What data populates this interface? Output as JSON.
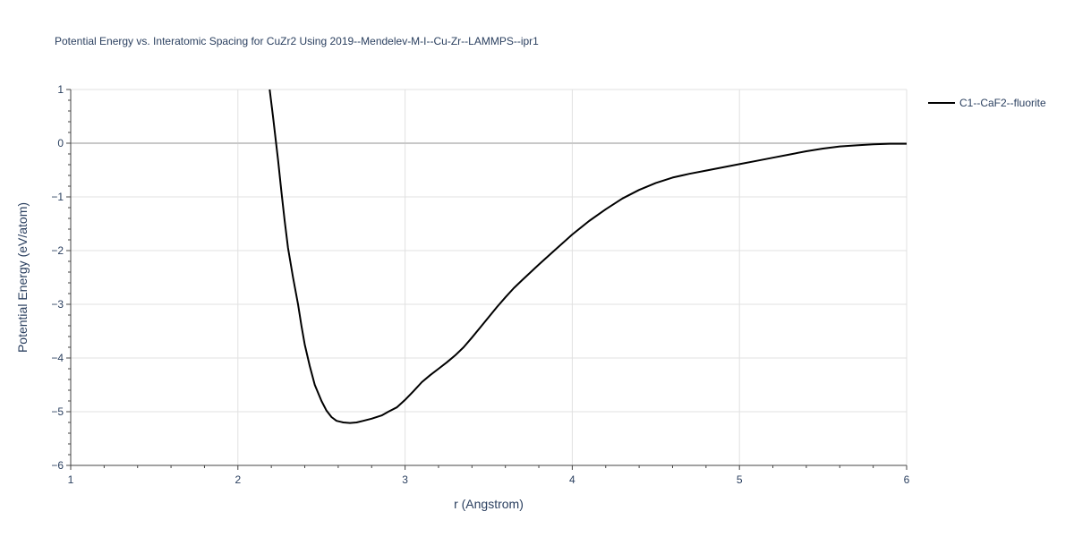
{
  "chart_data": {
    "type": "line",
    "title": "Potential Energy vs. Interatomic Spacing for CuZr2 Using 2019--Mendelev-M-I--Cu-Zr--LAMMPS--ipr1",
    "xlabel": "r (Angstrom)",
    "ylabel": "Potential Energy (eV/atom)",
    "xlim": [
      1,
      6
    ],
    "ylim": [
      -6,
      1
    ],
    "xticks": [
      1,
      2,
      3,
      4,
      5,
      6
    ],
    "yticks": [
      1,
      0,
      -1,
      -2,
      -3,
      -4,
      -5,
      -6
    ],
    "xtick_labels": [
      "1",
      "2",
      "3",
      "4",
      "5",
      "6"
    ],
    "ytick_labels": [
      "1",
      "0",
      "−1",
      "−2",
      "−3",
      "−4",
      "−5",
      "−6"
    ],
    "grid": true,
    "legend_position": "top-right",
    "series": [
      {
        "name": "C1--CaF2--fluorite",
        "color": "#000000",
        "x": [
          2.19,
          2.21,
          2.24,
          2.26,
          2.28,
          2.3,
          2.33,
          2.36,
          2.38,
          2.4,
          2.43,
          2.46,
          2.5,
          2.53,
          2.56,
          2.59,
          2.63,
          2.67,
          2.71,
          2.75,
          2.8,
          2.86,
          2.9,
          2.95,
          3.0,
          3.05,
          3.1,
          3.15,
          3.2,
          3.25,
          3.3,
          3.35,
          3.4,
          3.45,
          3.5,
          3.55,
          3.6,
          3.65,
          3.7,
          3.8,
          3.9,
          4.0,
          4.1,
          4.2,
          4.3,
          4.4,
          4.5,
          4.6,
          4.7,
          4.8,
          4.9,
          5.0,
          5.1,
          5.2,
          5.3,
          5.4,
          5.5,
          5.6,
          5.7,
          5.8,
          5.9,
          6.0
        ],
        "y": [
          1.0,
          0.5,
          -0.3,
          -0.9,
          -1.45,
          -1.95,
          -2.5,
          -3.0,
          -3.4,
          -3.75,
          -4.15,
          -4.5,
          -4.8,
          -4.98,
          -5.1,
          -5.17,
          -5.2,
          -5.21,
          -5.2,
          -5.17,
          -5.13,
          -5.07,
          -5.0,
          -4.92,
          -4.78,
          -4.62,
          -4.45,
          -4.32,
          -4.2,
          -4.08,
          -3.95,
          -3.8,
          -3.62,
          -3.43,
          -3.24,
          -3.05,
          -2.87,
          -2.7,
          -2.55,
          -2.26,
          -1.98,
          -1.7,
          -1.45,
          -1.23,
          -1.03,
          -0.87,
          -0.74,
          -0.64,
          -0.57,
          -0.51,
          -0.45,
          -0.39,
          -0.33,
          -0.27,
          -0.21,
          -0.15,
          -0.1,
          -0.06,
          -0.04,
          -0.02,
          -0.01,
          -0.01
        ]
      }
    ]
  }
}
